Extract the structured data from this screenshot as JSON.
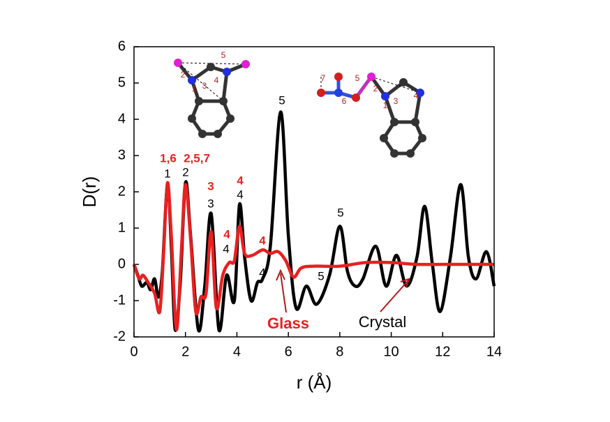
{
  "chart_data": {
    "type": "line",
    "xlabel": "r (Å)",
    "ylabel": "D(r)",
    "xlim": [
      0,
      14
    ],
    "xticks": [
      0,
      2,
      4,
      6,
      8,
      10,
      12,
      14
    ],
    "ylim": [
      -2,
      6
    ],
    "yticks": [
      -2,
      -1,
      0,
      1,
      2,
      3,
      4,
      5,
      6
    ],
    "series": [
      {
        "name": "Crystal",
        "color": "#000000",
        "x": [
          0,
          0.15,
          0.3,
          0.5,
          0.65,
          0.8,
          0.95,
          1.1,
          1.3,
          1.45,
          1.6,
          1.8,
          2.0,
          2.2,
          2.5,
          2.75,
          3.0,
          3.3,
          3.6,
          3.9,
          4.1,
          4.3,
          4.55,
          4.8,
          5.0,
          5.3,
          5.7,
          6.0,
          6.3,
          6.7,
          7.1,
          7.6,
          8.0,
          8.3,
          8.6,
          8.9,
          9.4,
          9.8,
          10.2,
          10.6,
          11.0,
          11.3,
          11.6,
          11.9,
          12.3,
          12.7,
          13.0,
          13.3,
          13.7,
          14.0
        ],
        "values": [
          0,
          -0.3,
          -0.6,
          -0.5,
          -0.7,
          -0.4,
          -0.9,
          -0.2,
          2.2,
          0.5,
          -1.8,
          -0.5,
          2.25,
          0.8,
          -1.8,
          -0.6,
          1.4,
          -1.8,
          -0.3,
          -1.0,
          1.65,
          0.2,
          -1.0,
          -0.5,
          -0.4,
          0.5,
          4.2,
          0.8,
          -1.2,
          -0.6,
          -1.1,
          -0.3,
          1.05,
          -0.2,
          -0.6,
          -0.4,
          0.5,
          -0.6,
          0.25,
          -0.6,
          0.2,
          1.6,
          0.0,
          -1.3,
          0.2,
          2.2,
          0.2,
          -0.4,
          0.35,
          -0.6
        ]
      },
      {
        "name": "Glass",
        "color": "#e8201f",
        "x": [
          0,
          0.2,
          0.35,
          0.55,
          0.8,
          1.0,
          1.15,
          1.3,
          1.45,
          1.65,
          1.85,
          2.0,
          2.2,
          2.4,
          2.6,
          2.8,
          3.0,
          3.2,
          3.45,
          3.7,
          3.9,
          4.1,
          4.3,
          4.6,
          5.0,
          5.3,
          5.6,
          5.9,
          6.2,
          6.5,
          7.0,
          8.0,
          9.0,
          10.0,
          11.0,
          12.0,
          14.0
        ],
        "values": [
          0,
          -0.4,
          -0.3,
          -0.5,
          -0.8,
          -1.3,
          0.3,
          2.25,
          0.8,
          -1.8,
          0.5,
          2.2,
          0.7,
          -1.3,
          -0.9,
          -0.8,
          0.9,
          -1.2,
          -0.3,
          0.05,
          0.1,
          1.05,
          0.3,
          0.25,
          0.4,
          0.3,
          0.35,
          0.1,
          -0.35,
          -0.1,
          -0.05,
          -0.05,
          0.05,
          0.05,
          0.0,
          0.0,
          0.0
        ]
      }
    ],
    "annotations": {
      "crystal_peaks": [
        "1",
        "2",
        "3",
        "4",
        "5",
        "4",
        "4",
        "5",
        "5"
      ],
      "glass_peaks": [
        "1,6",
        "2,5,7",
        "3",
        "4",
        "4",
        "4"
      ],
      "series_labels": [
        "Glass",
        "Crystal"
      ]
    },
    "molecule_labels": {
      "left": [
        "5",
        "2",
        "1",
        "3",
        "4"
      ],
      "right": [
        "7",
        "5",
        "6",
        "2",
        "1",
        "3",
        "4"
      ]
    }
  }
}
